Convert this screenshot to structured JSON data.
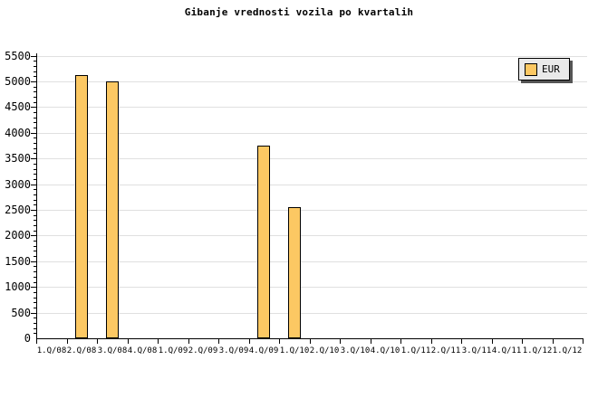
{
  "title": "Gibanje vrednosti vozila po kvartalih",
  "legend": {
    "label": "EUR",
    "background_color": "#E9E9E9",
    "shadow_color": "#555555",
    "swatch_color": "#FCC863"
  },
  "colors": {
    "background": "#FFFFFF",
    "bar_fill": "#FCC863",
    "bar_border": "#000000",
    "gridline": "#E0E0E0",
    "axis": "#000000",
    "text": "#000000"
  },
  "chart_data": {
    "type": "bar",
    "title": "Gibanje vrednosti vozila po kvartalih",
    "xlabel": "",
    "ylabel": "",
    "categories": [
      "1.Q/08",
      "2.Q/08",
      "3.Q/08",
      "4.Q/08",
      "1.Q/09",
      "2.Q/09",
      "3.Q/09",
      "4.Q/09",
      "1.Q/10",
      "2.Q/10",
      "3.Q/10",
      "4.Q/10",
      "1.Q/11",
      "2.Q/11",
      "3.Q/11",
      "4.Q/11",
      "1.Q/12",
      "1.Q/12"
    ],
    "series": [
      {
        "name": "EUR",
        "values": [
          null,
          5130,
          5000,
          null,
          null,
          null,
          null,
          3740,
          2560,
          null,
          null,
          null,
          null,
          null,
          null,
          null,
          null,
          null
        ]
      }
    ],
    "ylim": [
      0,
      5500
    ],
    "ytick_step": 500,
    "yticks": [
      0,
      500,
      1000,
      1500,
      2000,
      2500,
      3000,
      3500,
      4000,
      4500,
      5000,
      5500
    ],
    "y_minor_tick_step": 100,
    "grid": "horizontal",
    "legend_position": "top-right"
  }
}
